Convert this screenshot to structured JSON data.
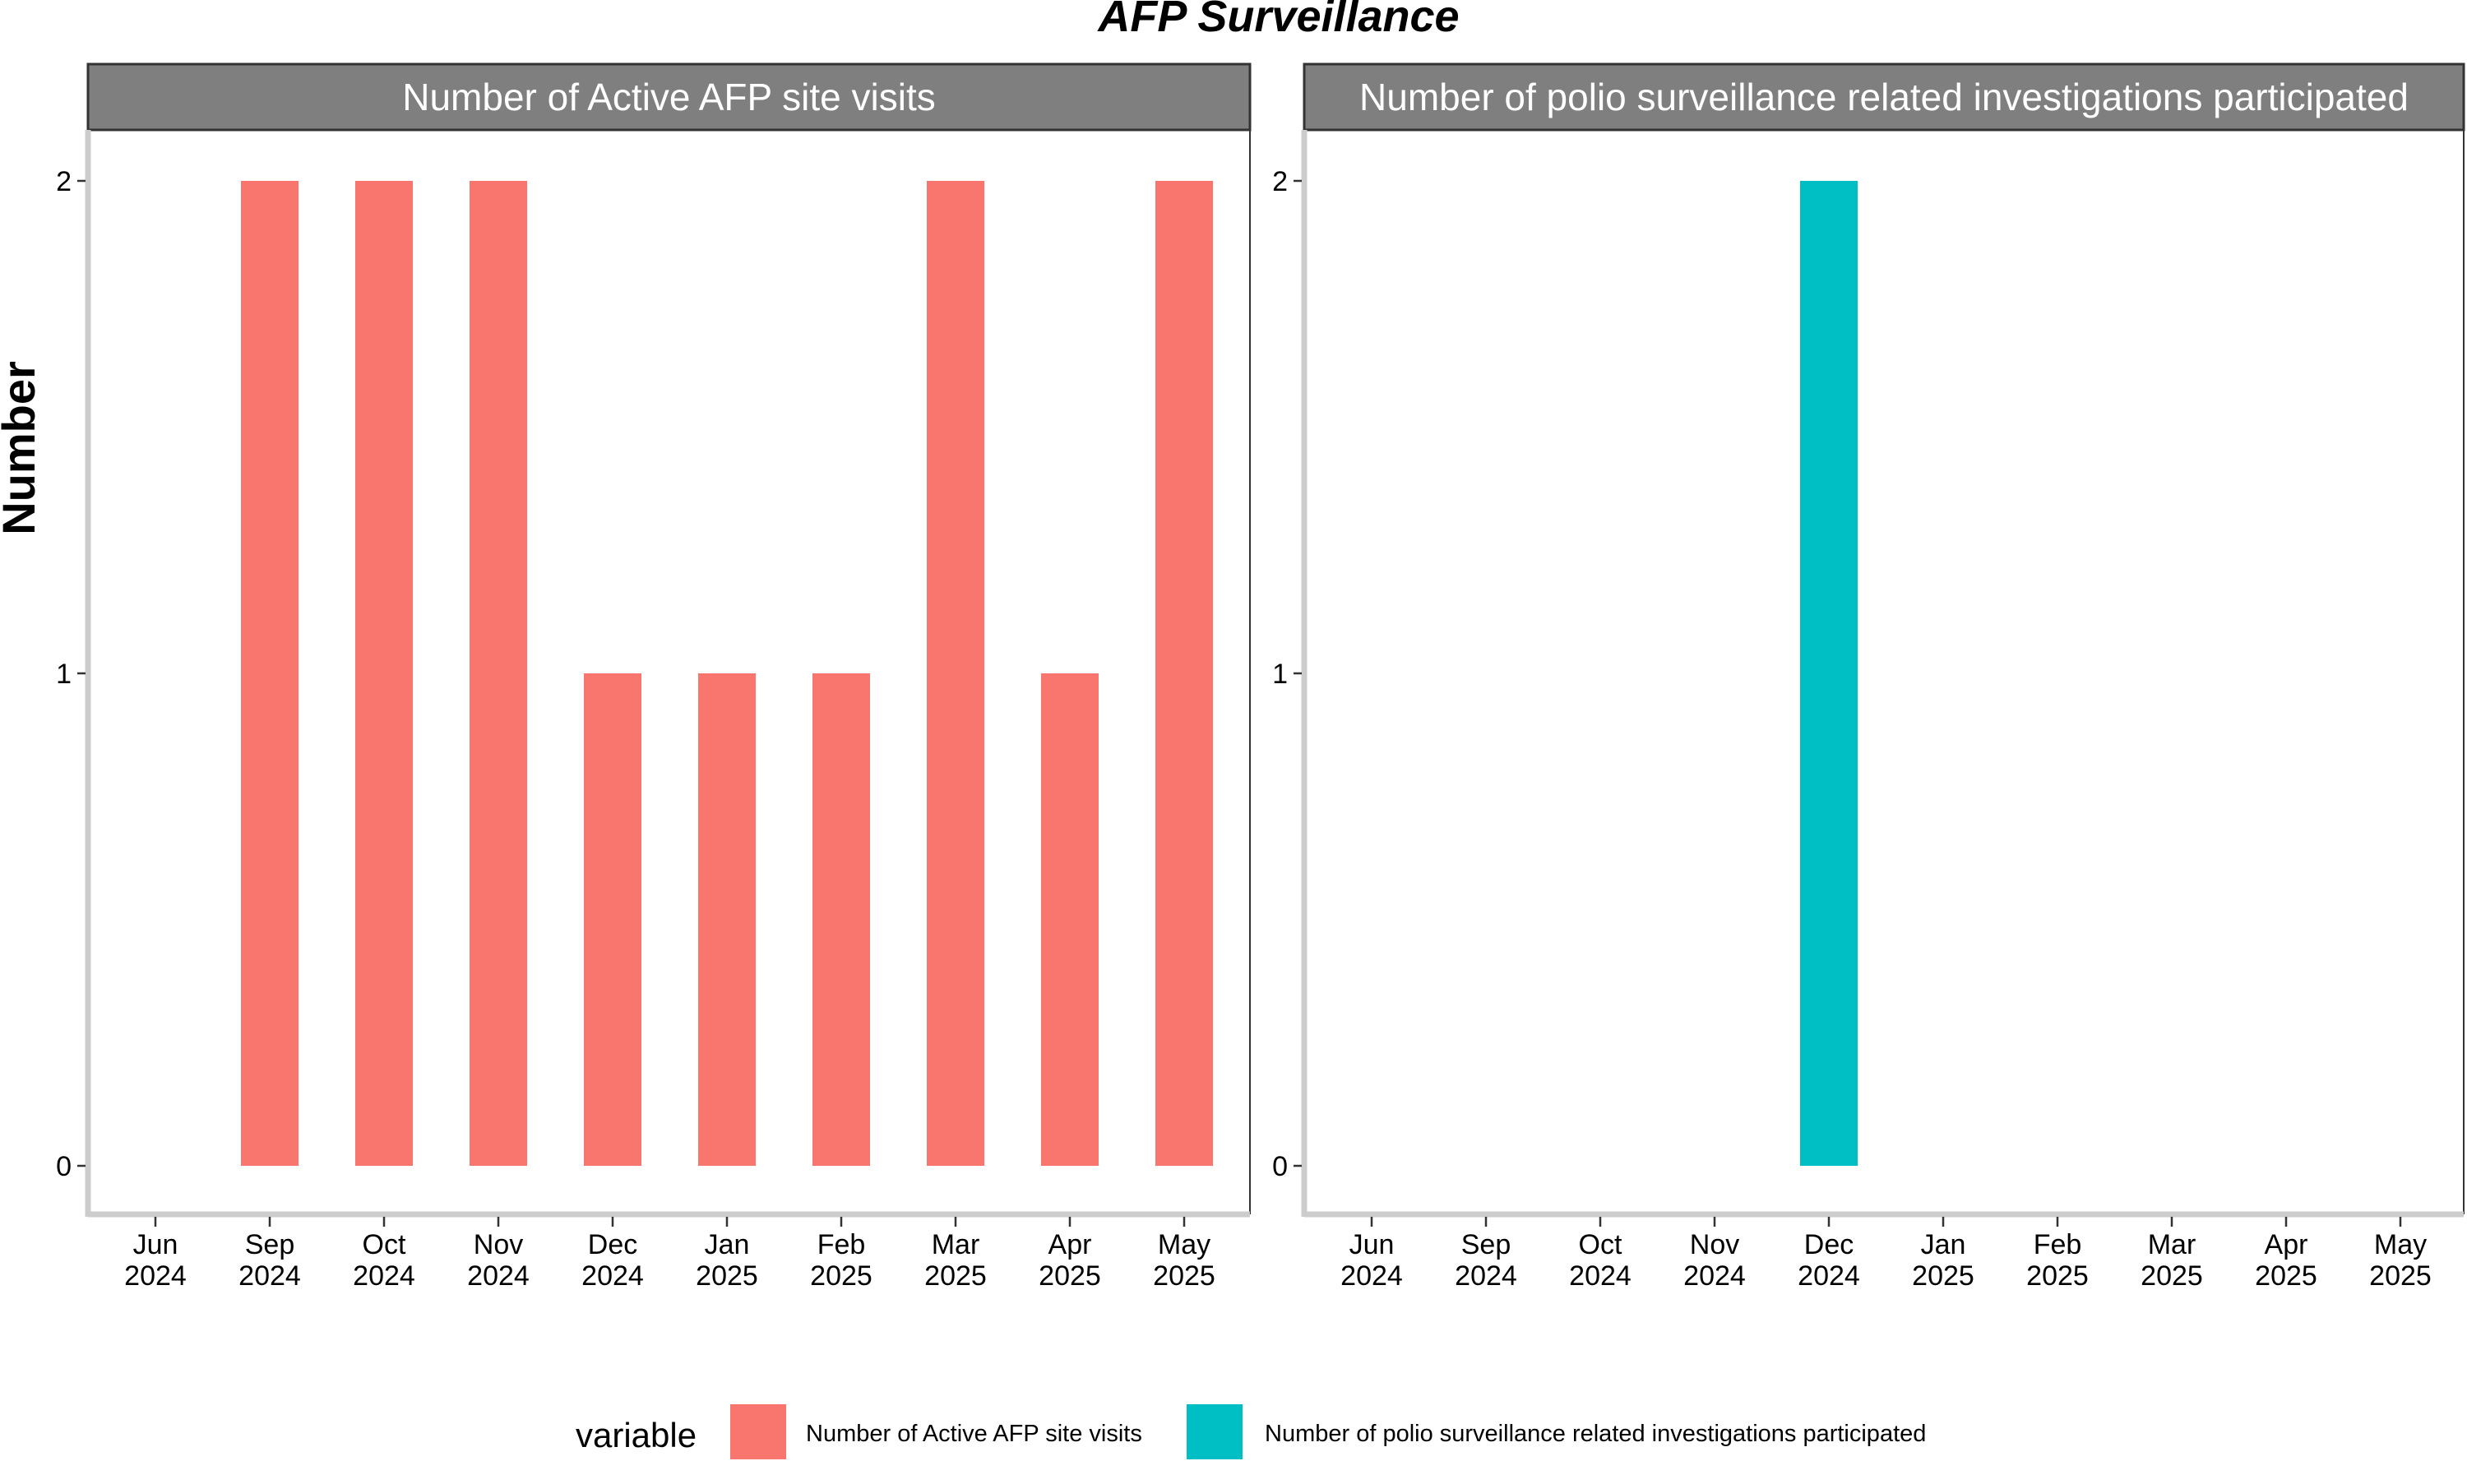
{
  "title": "AFP Surveillance",
  "ylabel": "Number",
  "legend": {
    "title": "variable",
    "entries": [
      {
        "label": "Number of Active AFP site visits",
        "color": "#F8766D"
      },
      {
        "label": "Number of polio surveillance related investigations participated",
        "color": "#00BFC4"
      }
    ]
  },
  "chart_data": [
    {
      "type": "bar",
      "panel_title": "Number of Active AFP site visits",
      "categories": [
        "Jun 2024",
        "Sep 2024",
        "Oct 2024",
        "Nov 2024",
        "Dec 2024",
        "Jan 2025",
        "Feb 2025",
        "Mar 2025",
        "Apr 2025",
        "May 2025"
      ],
      "tick_labels": [
        [
          "Jun",
          "2024"
        ],
        [
          "Sep",
          "2024"
        ],
        [
          "Oct",
          "2024"
        ],
        [
          "Nov",
          "2024"
        ],
        [
          "Dec",
          "2024"
        ],
        [
          "Jan",
          "2025"
        ],
        [
          "Feb",
          "2025"
        ],
        [
          "Mar",
          "2025"
        ],
        [
          "Apr",
          "2025"
        ],
        [
          "May",
          "2025"
        ]
      ],
      "values": [
        0,
        2,
        2,
        2,
        1,
        1,
        1,
        2,
        1,
        2
      ],
      "color": "#F8766D",
      "ylim": [
        0,
        2
      ],
      "yticks": [
        0,
        1,
        2
      ],
      "grid": false
    },
    {
      "type": "bar",
      "panel_title": "Number of polio surveillance related investigations participated",
      "categories": [
        "Jun 2024",
        "Sep 2024",
        "Oct 2024",
        "Nov 2024",
        "Dec 2024",
        "Jan 2025",
        "Feb 2025",
        "Mar 2025",
        "Apr 2025",
        "May 2025"
      ],
      "tick_labels": [
        [
          "Jun",
          "2024"
        ],
        [
          "Sep",
          "2024"
        ],
        [
          "Oct",
          "2024"
        ],
        [
          "Nov",
          "2024"
        ],
        [
          "Dec",
          "2024"
        ],
        [
          "Jan",
          "2025"
        ],
        [
          "Feb",
          "2025"
        ],
        [
          "Mar",
          "2025"
        ],
        [
          "Apr",
          "2025"
        ],
        [
          "May",
          "2025"
        ]
      ],
      "values": [
        0,
        0,
        0,
        0,
        2,
        0,
        0,
        0,
        0,
        0
      ],
      "color": "#00BFC4",
      "ylim": [
        0,
        2
      ],
      "yticks": [
        0,
        1,
        2
      ],
      "grid": false
    }
  ]
}
